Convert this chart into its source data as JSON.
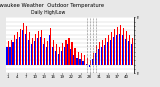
{
  "title": "Milwaukee Weather  Outdoor Temperature",
  "subtitle": "Daily High/Low",
  "title_fontsize": 3.8,
  "background_color": "#e8e8e8",
  "plot_bg_color": "#ffffff",
  "high_color": "#ff0000",
  "low_color": "#0000ff",
  "tick_fontsize": 2.8,
  "ylim": [
    -20,
    110
  ],
  "yticks": [
    110,
    100,
    90,
    80,
    70,
    60,
    50,
    40,
    30,
    20,
    10,
    0,
    -10,
    -20
  ],
  "ytick_labels": [
    "F.",
    ".",
    ".",
    ".",
    ".",
    ".",
    ".",
    ".",
    ".",
    ".",
    ".",
    ".",
    ".",
    "F."
  ],
  "highs": [
    55,
    58,
    68,
    75,
    82,
    98,
    90,
    75,
    62,
    72,
    78,
    80,
    62,
    55,
    85,
    58,
    48,
    42,
    50,
    58,
    62,
    52,
    38,
    30,
    28,
    22,
    15,
    10,
    28,
    45,
    52,
    58,
    62,
    68,
    75,
    82,
    88,
    92,
    85,
    78,
    70,
    62
  ],
  "lows": [
    40,
    42,
    52,
    60,
    65,
    80,
    72,
    58,
    48,
    55,
    62,
    65,
    48,
    40,
    68,
    42,
    32,
    25,
    32,
    40,
    48,
    36,
    22,
    15,
    12,
    8,
    2,
    -5,
    12,
    28,
    36,
    40,
    45,
    52,
    58,
    65,
    70,
    72,
    68,
    60,
    55,
    48
  ],
  "dashed_cols": [
    26,
    27,
    28,
    29
  ],
  "n_bars": 42
}
